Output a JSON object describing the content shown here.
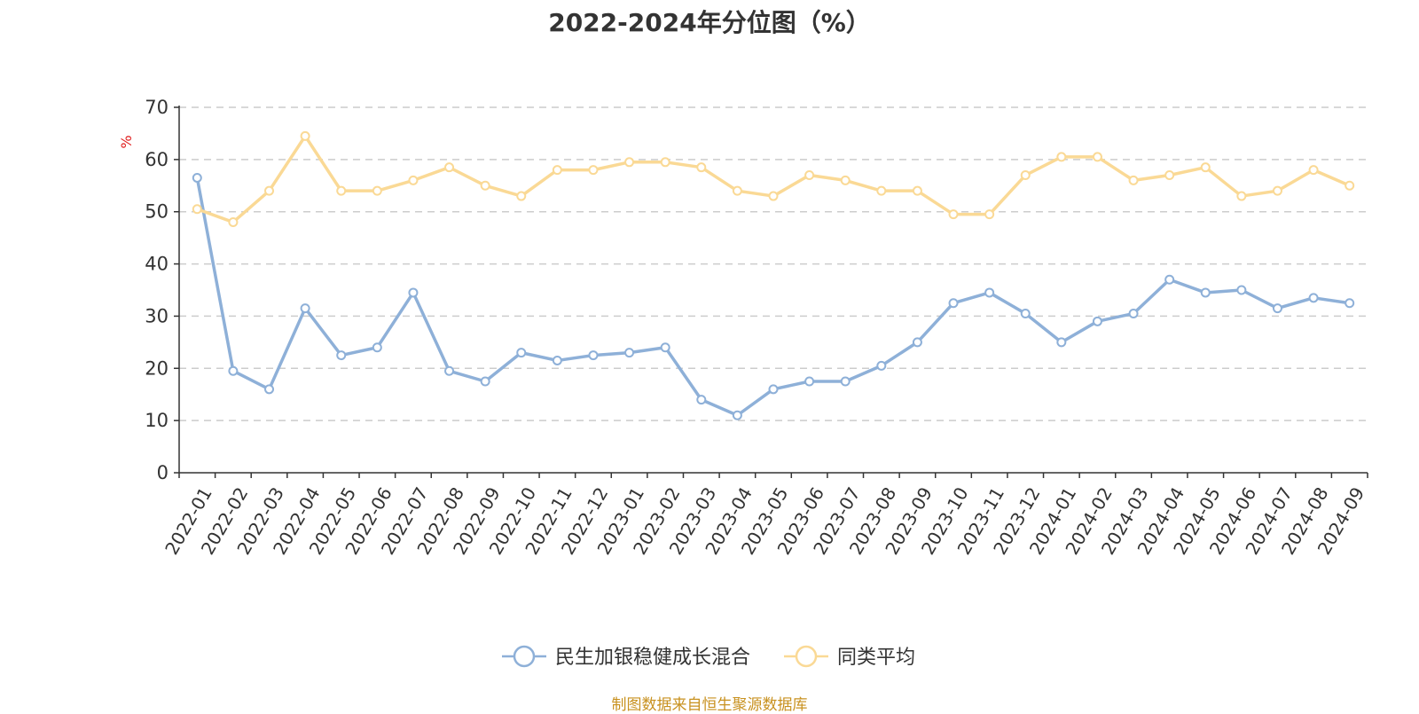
{
  "chart_data": {
    "type": "line",
    "title": "2022-2024年分位图（%）",
    "ylabel": "%",
    "xlabel": "",
    "ylim": [
      0,
      70
    ],
    "yticks": [
      0,
      10,
      20,
      30,
      40,
      50,
      60,
      70
    ],
    "grid": true,
    "legend_position": "bottom-center",
    "categories": [
      "2022-01",
      "2022-02",
      "2022-03",
      "2022-04",
      "2022-05",
      "2022-06",
      "2022-07",
      "2022-08",
      "2022-09",
      "2022-10",
      "2022-11",
      "2022-12",
      "2023-01",
      "2023-02",
      "2023-03",
      "2023-04",
      "2023-05",
      "2023-06",
      "2023-07",
      "2023-08",
      "2023-09",
      "2023-10",
      "2023-11",
      "2023-12",
      "2024-01",
      "2024-02",
      "2024-03",
      "2024-04",
      "2024-05",
      "2024-06",
      "2024-07",
      "2024-08",
      "2024-09"
    ],
    "series": [
      {
        "name": "民生加银稳健成长混合",
        "color": "#8eb0d8",
        "values": [
          56.5,
          19.5,
          16,
          31.5,
          22.5,
          24,
          34.5,
          19.5,
          17.5,
          23,
          21.5,
          22.5,
          23,
          24,
          14,
          11,
          16,
          17.5,
          17.5,
          20.5,
          25,
          32.5,
          34.5,
          30.5,
          25,
          29,
          30.5,
          37,
          34.5,
          35,
          31.5,
          33.5,
          32.5
        ]
      },
      {
        "name": "同类平均",
        "color": "#fad995",
        "values": [
          50.5,
          48,
          54,
          64.5,
          54,
          54,
          56,
          58.5,
          55,
          53,
          58,
          58,
          59.5,
          59.5,
          58.5,
          54,
          53,
          57,
          56,
          54,
          54,
          49.5,
          49.5,
          57,
          60.5,
          60.5,
          56,
          57,
          58.5,
          53,
          54,
          58,
          55
        ]
      }
    ]
  },
  "colors": {
    "axis": "#333333",
    "grid": "#cccccc",
    "ylabel": "#e02020",
    "source": "#c8911f"
  },
  "footer": {
    "source": "制图数据来自恒生聚源数据库"
  }
}
